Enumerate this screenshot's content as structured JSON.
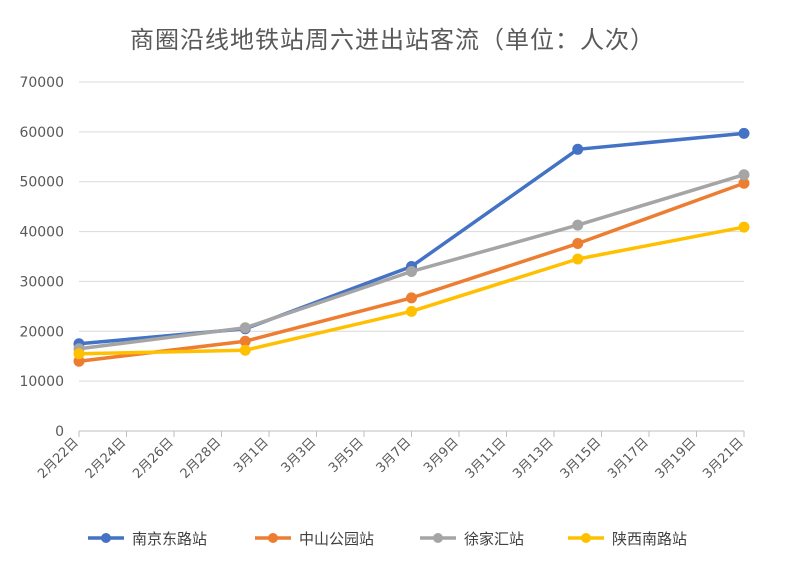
{
  "chart_data": {
    "type": "line",
    "title": "商圈沿线地铁站周六进出站客流（单位：人次）",
    "xlabel": "",
    "ylabel": "",
    "ylim": [
      0,
      70000
    ],
    "yticks": [
      0,
      10000,
      20000,
      30000,
      40000,
      50000,
      60000,
      70000
    ],
    "x_tick_labels": [
      "2月22日",
      "2月24日",
      "2月26日",
      "2月28日",
      "3月1日",
      "3月3日",
      "3月5日",
      "3月7日",
      "3月9日",
      "3月11日",
      "3月13日",
      "3月15日",
      "3月17日",
      "3月19日",
      "3月21日"
    ],
    "x_points": [
      "2月22日",
      "2月29日",
      "3月7日",
      "3月14日",
      "3月21日"
    ],
    "grid": true,
    "legend_position": "bottom",
    "series": [
      {
        "name": "南京东路站",
        "color": "#4472C4",
        "values": [
          17500,
          20500,
          33000,
          56500,
          59700
        ]
      },
      {
        "name": "中山公园站",
        "color": "#ED7D31",
        "values": [
          14000,
          18000,
          26700,
          37600,
          49700
        ]
      },
      {
        "name": "徐家汇站",
        "color": "#A5A5A5",
        "values": [
          16500,
          20700,
          32000,
          41300,
          51400
        ]
      },
      {
        "name": "陕西南路站",
        "color": "#FFC000",
        "values": [
          15500,
          16200,
          24000,
          34500,
          40900
        ]
      }
    ]
  }
}
